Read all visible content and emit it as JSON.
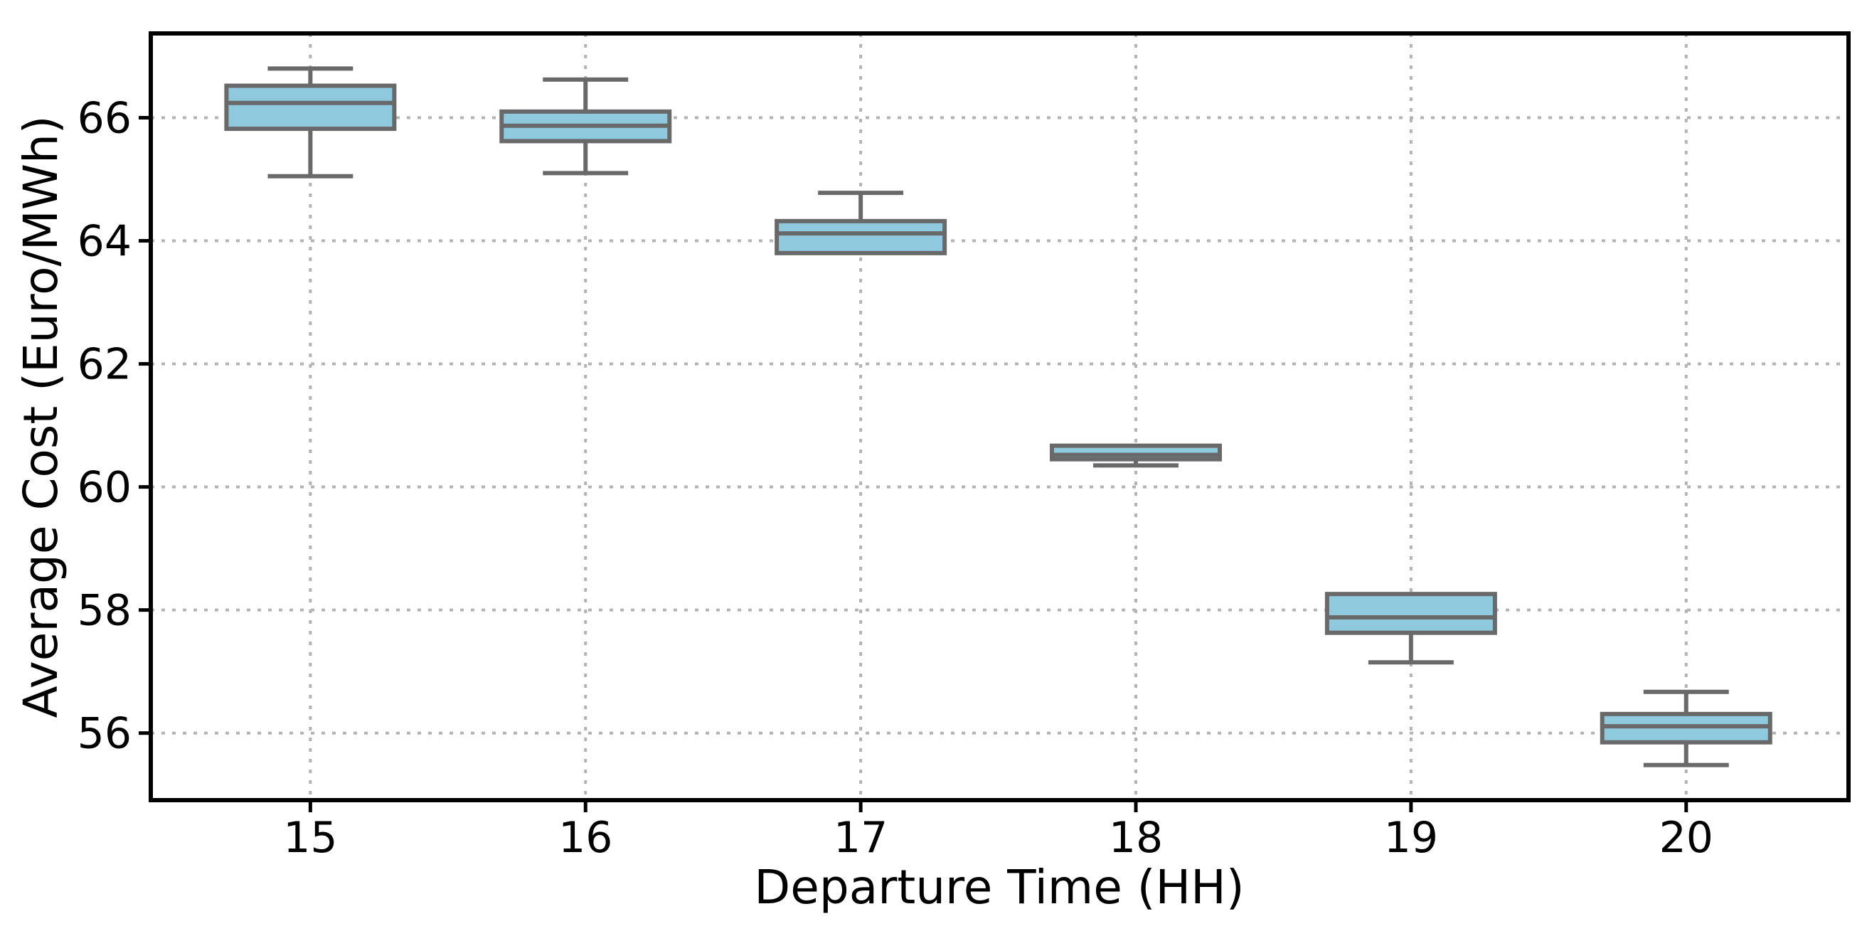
{
  "figure": {
    "background": "#ffffff"
  },
  "chart_data": {
    "type": "box",
    "title": "",
    "xlabel": "Departure Time (HH)",
    "ylabel": "Average Cost (Euro/MWh)",
    "categories": [
      "15",
      "16",
      "17",
      "18",
      "19",
      "20"
    ],
    "positions": [
      1,
      2,
      3,
      4,
      5,
      6
    ],
    "yticks": [
      56,
      58,
      60,
      62,
      64,
      66
    ],
    "ylim": [
      54.91,
      67.37
    ],
    "xlim": [
      0.42,
      6.59
    ],
    "grid": {
      "horizontal": true,
      "vertical": true,
      "style": "dotted"
    },
    "legend": "none",
    "box_width": 0.61,
    "cap_width": 0.31,
    "boxes": [
      {
        "category": "15",
        "whislo": 65.05,
        "q1": 65.82,
        "med": 66.24,
        "q3": 66.52,
        "whishi": 66.8
      },
      {
        "category": "16",
        "whislo": 65.1,
        "q1": 65.62,
        "med": 65.87,
        "q3": 66.1,
        "whishi": 66.62
      },
      {
        "category": "17",
        "whislo": 63.8,
        "q1": 63.8,
        "med": 64.12,
        "q3": 64.32,
        "whishi": 64.78
      },
      {
        "category": "18",
        "whislo": 60.35,
        "q1": 60.45,
        "med": 60.52,
        "q3": 60.67,
        "whishi": 60.67
      },
      {
        "category": "19",
        "whislo": 57.15,
        "q1": 57.63,
        "med": 57.88,
        "q3": 58.26,
        "whishi": 58.26
      },
      {
        "category": "20",
        "whislo": 55.48,
        "q1": 55.85,
        "med": 56.11,
        "q3": 56.31,
        "whishi": 56.67
      }
    ],
    "colors": {
      "box_fill": "#8ec9de",
      "box_edge": "#696969",
      "whisker": "#696969",
      "cap": "#696969",
      "median": "#696969",
      "grid": "#b3b3b3",
      "spine": "#000000",
      "tick": "#000000",
      "text": "#000000"
    }
  }
}
